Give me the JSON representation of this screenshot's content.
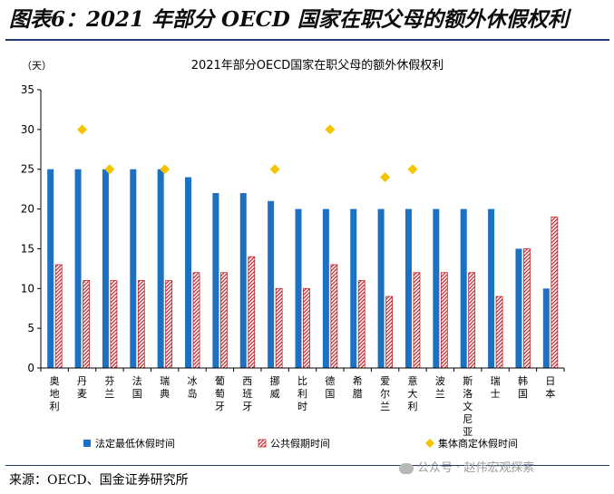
{
  "figure_title": "图表6：2021 年部分 OECD 国家在职父母的额外休假权利",
  "source": "来源：OECD、国金证券研究所",
  "watermark": "公众号 · 赵伟宏观探索",
  "colors": {
    "series1": "#1d71c3",
    "series2": "#c0262e",
    "series3": "#f5c400",
    "rule": "#1f3a73"
  },
  "chart_data": {
    "type": "bar",
    "title": "2021年部分OECD国家在职父母的额外休假权利",
    "ylabel": "（天）",
    "ylim": [
      0,
      35
    ],
    "yticks": [
      0,
      5,
      10,
      15,
      20,
      25,
      30,
      35
    ],
    "categories": [
      "奥地利",
      "丹麦",
      "芬兰",
      "法国",
      "瑞典",
      "冰岛",
      "葡萄牙",
      "西班牙",
      "挪威",
      "比利时",
      "德国",
      "希腊",
      "爱尔兰",
      "意大利",
      "波兰",
      "斯洛文尼亚",
      "瑞士",
      "韩国",
      "日本"
    ],
    "series": [
      {
        "name": "法定最低休假时间",
        "style": "bar-solid",
        "values": [
          25,
          25,
          25,
          25,
          25,
          24,
          22,
          22,
          21,
          20,
          20,
          20,
          20,
          20,
          20,
          20,
          20,
          15,
          10
        ]
      },
      {
        "name": "公共假期时间",
        "style": "bar-hatched",
        "values": [
          13,
          11,
          11,
          11,
          11,
          12,
          12,
          14,
          10,
          10,
          13,
          11,
          9,
          12,
          12,
          12,
          9,
          15,
          19
        ]
      },
      {
        "name": "集体商定休假时间",
        "style": "diamond",
        "values": [
          null,
          30,
          25,
          null,
          25,
          null,
          null,
          null,
          25,
          null,
          30,
          null,
          24,
          25,
          null,
          null,
          null,
          null,
          null
        ]
      }
    ]
  }
}
